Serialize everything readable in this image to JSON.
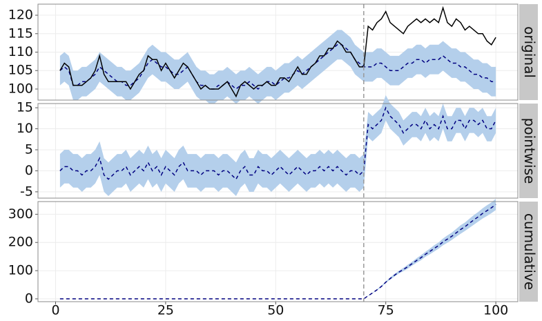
{
  "chart_data": {
    "type": "line",
    "x": [
      1,
      2,
      3,
      4,
      5,
      6,
      7,
      8,
      9,
      10,
      11,
      12,
      13,
      14,
      15,
      16,
      17,
      18,
      19,
      20,
      21,
      22,
      23,
      24,
      25,
      26,
      27,
      28,
      29,
      30,
      31,
      32,
      33,
      34,
      35,
      36,
      37,
      38,
      39,
      40,
      41,
      42,
      43,
      44,
      45,
      46,
      47,
      48,
      49,
      50,
      51,
      52,
      53,
      54,
      55,
      56,
      57,
      58,
      59,
      60,
      61,
      62,
      63,
      64,
      65,
      66,
      67,
      68,
      69,
      70,
      71,
      72,
      73,
      74,
      75,
      76,
      77,
      78,
      79,
      80,
      81,
      82,
      83,
      84,
      85,
      86,
      87,
      88,
      89,
      90,
      91,
      92,
      93,
      94,
      95,
      96,
      97,
      98,
      99,
      100
    ],
    "xlim": [
      -4,
      105
    ],
    "xticks": [
      0,
      25,
      50,
      75,
      100
    ],
    "grid": true,
    "intervention": 70,
    "panels": [
      {
        "strip": "original",
        "ylim": [
          97,
          123
        ],
        "yticks": [
          100,
          105,
          110,
          115,
          120
        ],
        "series": [
          {
            "color": "#000080",
            "dash": true,
            "band_color": "#b4cfeb",
            "values": [
              105,
              106,
              105,
              101,
              101,
              102,
              102,
              103,
              104,
              106,
              105,
              104,
              103,
              102,
              102,
              101,
              101,
              102,
              103,
              105,
              107,
              108,
              107,
              106,
              106,
              105,
              104,
              104,
              105,
              106,
              104,
              102,
              101,
              101,
              100,
              100,
              101,
              101,
              102,
              101,
              100,
              101,
              101,
              102,
              101,
              100,
              101,
              102,
              102,
              101,
              102,
              103,
              103,
              104,
              105,
              104,
              105,
              106,
              107,
              108,
              109,
              110,
              111,
              112,
              112,
              111,
              110,
              108,
              107,
              106,
              106,
              106,
              107,
              107,
              106,
              105,
              105,
              105,
              106,
              107,
              107,
              108,
              108,
              107,
              108,
              108,
              108,
              109,
              108,
              107,
              107,
              106,
              106,
              105,
              104,
              104,
              103,
              103,
              102,
              102
            ],
            "error": [
              4,
              4,
              4,
              4,
              4,
              4,
              4,
              4,
              4,
              4,
              4,
              4,
              4,
              4,
              4,
              4,
              4,
              4,
              4,
              4,
              4,
              4,
              4,
              4,
              4,
              4,
              4,
              4,
              4,
              4,
              4,
              4,
              4,
              4,
              4,
              4,
              4,
              4,
              4,
              4,
              4,
              4,
              4,
              4,
              4,
              4,
              4,
              4,
              4,
              4,
              4,
              4,
              4,
              4,
              4,
              4,
              4,
              4,
              4,
              4,
              4,
              4,
              4,
              4,
              4,
              4,
              4,
              4,
              4,
              4,
              4,
              4,
              4,
              4,
              4,
              4,
              4,
              4,
              4,
              4,
              4,
              4,
              4,
              4,
              4,
              4,
              4,
              4,
              4,
              4,
              4,
              4,
              4,
              4,
              4,
              4,
              4,
              4,
              4,
              4
            ]
          },
          {
            "color": "#000000",
            "dash": false,
            "values": [
              105,
              107,
              106,
              101,
              101,
              101,
              102,
              103,
              105,
              109,
              104,
              102,
              102,
              102,
              102,
              102,
              100,
              102,
              104,
              105,
              109,
              108,
              108,
              105,
              107,
              105,
              103,
              105,
              107,
              106,
              104,
              102,
              100,
              101,
              100,
              100,
              100,
              101,
              102,
              100,
              98,
              101,
              102,
              101,
              100,
              101,
              101,
              102,
              101,
              101,
              103,
              103,
              102,
              104,
              106,
              104,
              104,
              106,
              107,
              109,
              109,
              111,
              111,
              113,
              112,
              110,
              110,
              108,
              106,
              106,
              117,
              116,
              118,
              119,
              121,
              118,
              117,
              116,
              115,
              117,
              118,
              119,
              118,
              119,
              118,
              119,
              118,
              122,
              118,
              117,
              119,
              118,
              116,
              117,
              116,
              115,
              115,
              113,
              112,
              114
            ]
          }
        ]
      },
      {
        "strip": "pointwise",
        "ylim": [
          -6.5,
          16
        ],
        "yticks": [
          -5,
          0,
          5,
          10,
          15
        ],
        "series": [
          {
            "color": "#000080",
            "dash": true,
            "band_color": "#b4cfeb",
            "values": [
              0,
              1,
              1,
              0,
              0,
              -1,
              0,
              0,
              1,
              3,
              -1,
              -2,
              -1,
              0,
              0,
              1,
              -1,
              0,
              1,
              0,
              2,
              0,
              1,
              -1,
              1,
              0,
              -1,
              1,
              2,
              0,
              0,
              0,
              -1,
              0,
              0,
              0,
              -1,
              0,
              0,
              -1,
              -2,
              0,
              1,
              -1,
              -1,
              1,
              0,
              0,
              -1,
              0,
              1,
              0,
              -1,
              0,
              1,
              0,
              -1,
              0,
              0,
              1,
              0,
              1,
              0,
              1,
              0,
              -1,
              0,
              0,
              -1,
              0,
              11,
              10,
              11,
              12,
              15,
              13,
              12,
              11,
              9,
              10,
              11,
              11,
              10,
              12,
              10,
              11,
              10,
              13,
              10,
              10,
              12,
              12,
              10,
              12,
              12,
              11,
              12,
              10,
              10,
              12
            ],
            "error": [
              4,
              4,
              4,
              4,
              4,
              4,
              4,
              4,
              4,
              4,
              4,
              4,
              4,
              4,
              4,
              4,
              4,
              4,
              4,
              4,
              4,
              4,
              4,
              4,
              4,
              4,
              4,
              4,
              4,
              4,
              4,
              4,
              4,
              4,
              4,
              4,
              4,
              4,
              4,
              4,
              4,
              4,
              4,
              4,
              4,
              4,
              4,
              4,
              4,
              4,
              4,
              4,
              4,
              4,
              4,
              4,
              4,
              4,
              4,
              4,
              4,
              4,
              4,
              4,
              4,
              4,
              4,
              4,
              4,
              4,
              3,
              3,
              3,
              3,
              3,
              3,
              3,
              3,
              3,
              3,
              3,
              3,
              3,
              3,
              3,
              3,
              3,
              3,
              3,
              3,
              3,
              3,
              3,
              3,
              3,
              3,
              3,
              3,
              3,
              3
            ]
          }
        ]
      },
      {
        "strip": "cumulative",
        "ylim": [
          -10,
          345
        ],
        "yticks": [
          0,
          100,
          200,
          300
        ],
        "series": [
          {
            "color": "#000080",
            "dash": true,
            "band_color": "#b4cfeb",
            "values": [
              0,
              0,
              0,
              0,
              0,
              0,
              0,
              0,
              0,
              0,
              0,
              0,
              0,
              0,
              0,
              0,
              0,
              0,
              0,
              0,
              0,
              0,
              0,
              0,
              0,
              0,
              0,
              0,
              0,
              0,
              0,
              0,
              0,
              0,
              0,
              0,
              0,
              0,
              0,
              0,
              0,
              0,
              0,
              0,
              0,
              0,
              0,
              0,
              0,
              0,
              0,
              0,
              0,
              0,
              0,
              0,
              0,
              0,
              0,
              0,
              0,
              0,
              0,
              0,
              0,
              0,
              0,
              0,
              0,
              0,
              11,
              21,
              32,
              44,
              59,
              72,
              84,
              95,
              104,
              114,
              125,
              136,
              146,
              158,
              168,
              179,
              189,
              202,
              212,
              222,
              234,
              246,
              256,
              268,
              280,
              291,
              303,
              313,
              323,
              335
            ],
            "error": [
              0,
              0,
              0,
              0,
              0,
              0,
              0,
              0,
              0,
              0,
              0,
              0,
              0,
              0,
              0,
              0,
              0,
              0,
              0,
              0,
              0,
              0,
              0,
              0,
              0,
              0,
              0,
              0,
              0,
              0,
              0,
              0,
              0,
              0,
              0,
              0,
              0,
              0,
              0,
              0,
              0,
              0,
              0,
              0,
              0,
              0,
              0,
              0,
              0,
              0,
              0,
              0,
              0,
              0,
              0,
              0,
              0,
              0,
              0,
              0,
              0,
              0,
              0,
              0,
              0,
              0,
              0,
              0,
              0,
              0,
              1,
              1,
              2,
              3,
              3,
              4,
              5,
              5,
              6,
              7,
              7,
              8,
              9,
              9,
              10,
              11,
              11,
              12,
              13,
              13,
              14,
              15,
              15,
              16,
              17,
              17,
              18,
              19,
              19,
              20
            ]
          }
        ]
      }
    ]
  }
}
